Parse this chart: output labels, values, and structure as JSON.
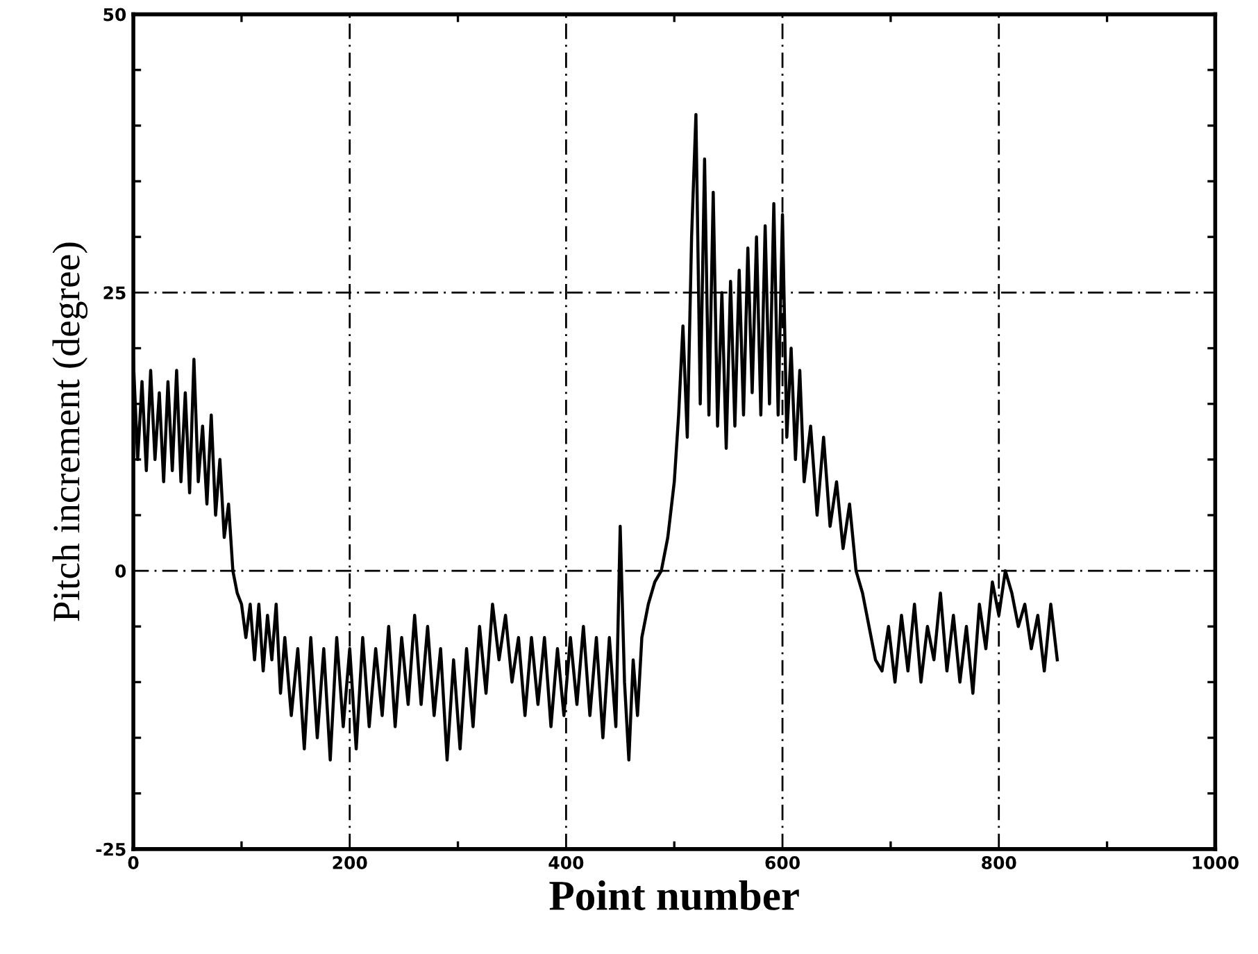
{
  "chart_data": {
    "type": "line",
    "xlabel": "Point number",
    "ylabel": "Pitch increment (degree)",
    "xlim": [
      0,
      1000
    ],
    "ylim": [
      -25,
      50
    ],
    "xticks": [
      0,
      200,
      400,
      600,
      800,
      1000
    ],
    "yticks": [
      {
        "value": -25,
        "label": "-25"
      },
      0,
      25,
      50
    ],
    "grid": true,
    "marker": "none",
    "line_style": "solid",
    "series": [
      {
        "color": "#000000",
        "x": [
          0,
          4,
          8,
          12,
          16,
          20,
          24,
          28,
          32,
          36,
          40,
          44,
          48,
          52,
          56,
          60,
          64,
          68,
          72,
          76,
          80,
          84,
          88,
          92,
          96,
          100,
          104,
          108,
          112,
          116,
          120,
          124,
          128,
          132,
          136,
          140,
          146,
          152,
          158,
          164,
          170,
          176,
          182,
          188,
          194,
          200,
          206,
          212,
          218,
          224,
          230,
          236,
          242,
          248,
          254,
          260,
          266,
          272,
          278,
          284,
          290,
          296,
          302,
          308,
          314,
          320,
          326,
          332,
          338,
          344,
          350,
          356,
          362,
          368,
          374,
          380,
          386,
          392,
          398,
          404,
          410,
          416,
          422,
          428,
          434,
          440,
          446,
          450,
          454,
          458,
          462,
          466,
          470,
          476,
          482,
          488,
          494,
          500,
          504,
          508,
          512,
          516,
          520,
          524,
          528,
          532,
          536,
          540,
          544,
          548,
          552,
          556,
          560,
          564,
          568,
          572,
          576,
          580,
          584,
          588,
          592,
          596,
          600,
          604,
          608,
          612,
          616,
          620,
          626,
          632,
          638,
          644,
          650,
          656,
          662,
          668,
          674,
          680,
          686,
          692,
          698,
          704,
          710,
          716,
          722,
          728,
          734,
          740,
          746,
          752,
          758,
          764,
          770,
          776,
          782,
          788,
          794,
          800,
          806,
          812,
          818,
          824,
          830,
          836,
          842,
          848,
          854
        ],
        "values": [
          19,
          10,
          17,
          9,
          18,
          10,
          16,
          8,
          17,
          9,
          18,
          8,
          16,
          7,
          19,
          8,
          13,
          6,
          14,
          5,
          10,
          3,
          6,
          0,
          -2,
          -3,
          -6,
          -3,
          -8,
          -3,
          -9,
          -4,
          -8,
          -3,
          -11,
          -6,
          -13,
          -7,
          -16,
          -6,
          -15,
          -7,
          -17,
          -6,
          -14,
          -7,
          -16,
          -6,
          -14,
          -7,
          -13,
          -5,
          -14,
          -6,
          -12,
          -4,
          -12,
          -5,
          -13,
          -7,
          -17,
          -8,
          -16,
          -7,
          -14,
          -5,
          -11,
          -3,
          -8,
          -4,
          -10,
          -6,
          -13,
          -6,
          -12,
          -6,
          -14,
          -7,
          -13,
          -6,
          -12,
          -5,
          -13,
          -6,
          -15,
          -6,
          -14,
          4,
          -10,
          -17,
          -8,
          -13,
          -6,
          -3,
          -1,
          0,
          3,
          8,
          14,
          22,
          12,
          30,
          41,
          15,
          37,
          14,
          34,
          13,
          25,
          11,
          26,
          13,
          27,
          14,
          29,
          16,
          30,
          14,
          31,
          15,
          33,
          14,
          32,
          12,
          20,
          10,
          18,
          8,
          13,
          5,
          12,
          4,
          8,
          2,
          6,
          0,
          -2,
          -5,
          -8,
          -9,
          -5,
          -10,
          -4,
          -9,
          -3,
          -10,
          -5,
          -8,
          -2,
          -9,
          -4,
          -10,
          -5,
          -11,
          -3,
          -7,
          -1,
          -4,
          0,
          -2,
          -5,
          -3,
          -7,
          -4,
          -9,
          -3,
          -8
        ]
      }
    ]
  }
}
